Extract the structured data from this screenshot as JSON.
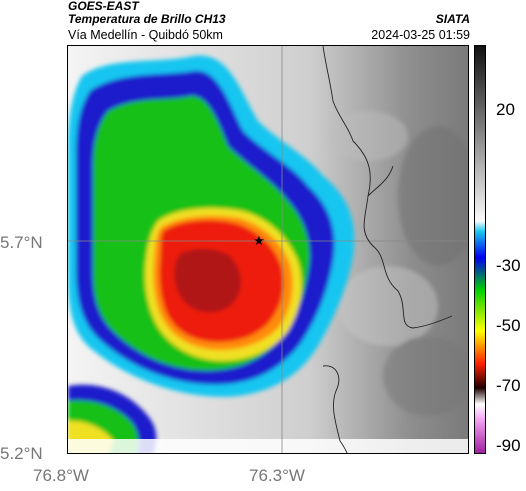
{
  "header": {
    "satellite": "GOES-EAST",
    "product": "Temperatura de Brillo CH13",
    "region": "Vía Medellín - Quibdó 50km",
    "source": "SIATA",
    "datetime": "2024-03-25 01:59"
  },
  "axes": {
    "lat_ticks": [
      "5.7°N",
      "5.2°N"
    ],
    "lon_ticks": [
      "76.8°W",
      "76.3°W"
    ]
  },
  "map": {
    "marker": "star-marker",
    "gridline_color": "#888888",
    "border_color": "#222222"
  },
  "colorbar": {
    "labels": [
      "20",
      "-30",
      "-50",
      "-70",
      "-90"
    ],
    "colors": [
      "#1a1a1a",
      "#ffffff",
      "#9a9a9a",
      "#00bfff",
      "#0000ff",
      "#00ff00",
      "#ffff00",
      "#ff0000",
      "#000000",
      "#ffffff",
      "#c020c0"
    ]
  }
}
